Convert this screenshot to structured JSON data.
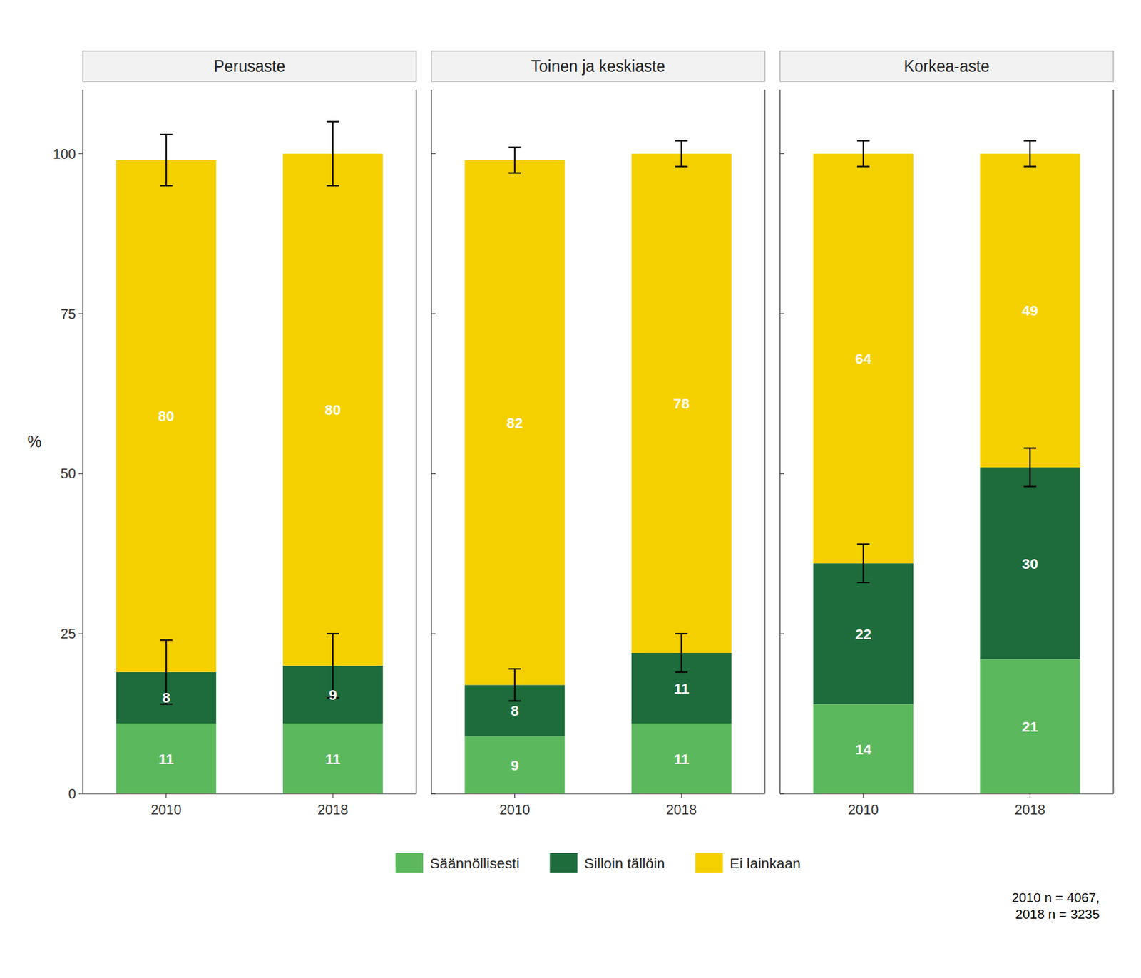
{
  "chart_data": [
    {
      "type": "bar",
      "stacked": true,
      "data_labels": true,
      "title": "Perusaste",
      "ylabel": "%",
      "legend": "bottom",
      "categories": [
        "2010",
        "2018"
      ],
      "series": [
        {
          "name": "Säännöllisesti",
          "color": "#5CB85C",
          "values": [
            11,
            11
          ]
        },
        {
          "name": "Silloin tällöin",
          "color": "#1E6B3C",
          "values": [
            8,
            9
          ],
          "errors": [
            5,
            5
          ]
        },
        {
          "name": "Ei lainkaan",
          "color": "#F5D000",
          "values": [
            80,
            80
          ],
          "errors": [
            4,
            5
          ]
        }
      ],
      "ylim": [
        0,
        110
      ],
      "yticks": [
        0,
        25,
        50,
        75,
        100
      ],
      "grid": false
    },
    {
      "type": "bar",
      "stacked": true,
      "data_labels": true,
      "title": "Toinen ja keskiaste",
      "tick_labels": "x",
      "categories": [
        "2010",
        "2018"
      ],
      "series": [
        {
          "name": "Säännöllisesti",
          "color": "#5CB85C",
          "values": [
            9,
            11
          ]
        },
        {
          "name": "Silloin tällöin",
          "color": "#1E6B3C",
          "values": [
            8,
            11
          ],
          "errors": [
            2.5,
            3
          ]
        },
        {
          "name": "Ei lainkaan",
          "color": "#F5D000",
          "values": [
            82,
            78
          ],
          "errors": [
            2,
            2
          ]
        }
      ],
      "ylim": [
        0,
        110
      ],
      "yticks": [
        0,
        25,
        50,
        75,
        100
      ],
      "grid": false
    },
    {
      "type": "bar",
      "stacked": true,
      "data_labels": true,
      "title": "Korkea-aste",
      "tick_labels": "x",
      "categories": [
        "2010",
        "2018"
      ],
      "series": [
        {
          "name": "Säännöllisesti",
          "color": "#5CB85C",
          "values": [
            14,
            21
          ]
        },
        {
          "name": "Silloin tällöin",
          "color": "#1E6B3C",
          "values": [
            22,
            30
          ],
          "errors": [
            3,
            3
          ]
        },
        {
          "name": "Ei lainkaan",
          "color": "#F5D000",
          "values": [
            64,
            49
          ],
          "errors": [
            2,
            2
          ]
        }
      ],
      "ylim": [
        0,
        110
      ],
      "yticks": [
        0,
        25,
        50,
        75,
        100
      ],
      "grid": false,
      "annotations": [
        "2010 n = 4067,\n2018 n = 3235"
      ]
    }
  ]
}
